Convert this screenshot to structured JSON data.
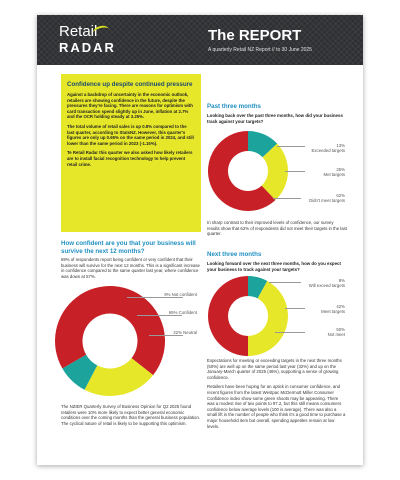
{
  "header": {
    "logo_retail": "Retail",
    "logo_radar": "RADAR",
    "title": "The REPORT",
    "subtitle": "A quarterly Retail NZ Report  //  to 30 June 2025"
  },
  "intro": {
    "title": "Confidence up despite continued pressure",
    "p1": "Against a backdrop of uncertainty in the economic outlook, retailers are showing confidence in the future, despite the pressures they're facing. There are reasons for optimism with card transaction spend slightly up in June, inflation at 2.7% and the OCR holding steady at 3.25%.",
    "p2": "The total volume of retail sales is up 0.8% compared to the last quarter, according to StatsNZ. However, this quarter's figures are only up 0.65% on the same period in 2024, and still lower than the same period in 2023 (-1.15%).",
    "p3": "Te Retail Radar this quarter we also asked how likely retailers are to install facial recognition technology to help prevent retail crime."
  },
  "survive": {
    "heading": "How confident are you that your business will survive the next 12 months?",
    "para": "69% of respondents report being confident or very confident that their business will survive for the next 12 months. This is a significant increase in confidence compared to the same quarter last year, where confidence was down at 57%.",
    "bottom_para": "The NZIER Quarterly Survey of Business Opinion for Q2 2025 found retailers were 10% more likely to expect better general economic conditions over the coming months than the general business population. The cyclical nature of retail is likely to be supporting this optimism."
  },
  "past": {
    "heading": "Past three months",
    "question": "Looking back over the past three months, how  did your business track against your targets?",
    "para": "In sharp contrast to their improved levels of confidence, our survey results show that 62% of respondents did not meet their targets in the last quarter."
  },
  "next": {
    "heading": "Next three months",
    "question": "Looking forward over the next three months, how do you expect your business to track against your targets?",
    "p1": "Expectations for meeting or exceeding targets in the next three months (50%) are well up on the same period last year (32%) and up on the January-March quarter of 2025 (46%), supporting a sense of growing confidence.",
    "p2": "Retailers have been hoping for an uptick in consumer confidence, and recent figures from the latest Westpac McDermott Miller Consumer Confidence index show some green shoots may be appearing. There was a modest rise of two points to 97.2, but this still means consumers confidence below average levels (100 is average). There was also a small lift in the number of people who think it's a good time to purchase a major household item but overall, spending appetites remain at low levels."
  },
  "chart_data": [
    {
      "type": "pie",
      "name": "survive-donut",
      "categories": [
        "Confident",
        "Neutral",
        "Not confident"
      ],
      "values": [
        69,
        22,
        9
      ],
      "labels": [
        "69% Confident",
        "22% Neutral",
        "9% Not confident"
      ],
      "colors": [
        "#c72127",
        "#e7e72a",
        "#1ba39c"
      ]
    },
    {
      "type": "pie",
      "name": "past-donut",
      "categories": [
        "Exceeded targets",
        "Met targets",
        "Didn't meet targets"
      ],
      "values": [
        13,
        25,
        62
      ],
      "labels": [
        {
          "pct": "13%",
          "text": "Exceeded targets"
        },
        {
          "pct": "25%",
          "text": "Met targets"
        },
        {
          "pct": "62%",
          "text": "Didn't meet targets"
        }
      ],
      "colors": [
        "#1ba39c",
        "#e7e72a",
        "#c72127"
      ]
    },
    {
      "type": "pie",
      "name": "next-donut",
      "categories": [
        "Will exceed targets",
        "Meet targets",
        "Not meet"
      ],
      "values": [
        8,
        42,
        50
      ],
      "labels": [
        {
          "pct": "8%",
          "text": "Will exceed targets"
        },
        {
          "pct": "42%",
          "text": "Meet targets"
        },
        {
          "pct": "50%",
          "text": "Not meet"
        }
      ],
      "colors": [
        "#1ba39c",
        "#e7e72a",
        "#c72127"
      ]
    }
  ]
}
